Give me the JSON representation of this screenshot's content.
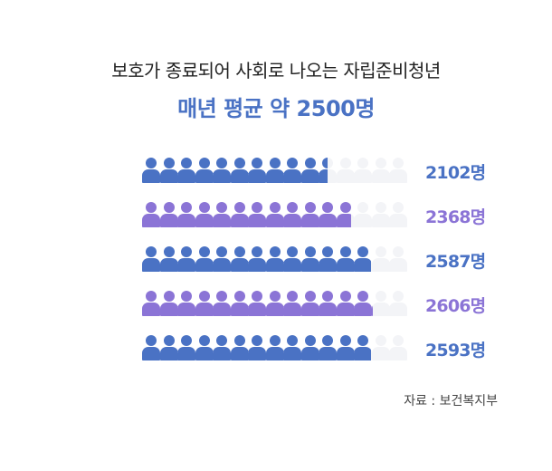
{
  "title": {
    "line1": "보호가 종료되어 사회로 나오는 자립준비청년",
    "line2": "매년 평균 약 2500명"
  },
  "source": "자료 : 보건복지부",
  "colors": {
    "blue": "#4a72c4",
    "purple": "#8b74d6",
    "ghost": "#f3f4f7"
  },
  "chart_data": {
    "type": "bar",
    "series": [
      {
        "label": "2102명",
        "value": 2102,
        "color": "#4a72c4"
      },
      {
        "label": "2368명",
        "value": 2368,
        "color": "#8b74d6"
      },
      {
        "label": "2587명",
        "value": 2587,
        "color": "#4a72c4"
      },
      {
        "label": "2606명",
        "value": 2606,
        "color": "#8b74d6"
      },
      {
        "label": "2593명",
        "value": 2593,
        "color": "#4a72c4"
      }
    ]
  }
}
